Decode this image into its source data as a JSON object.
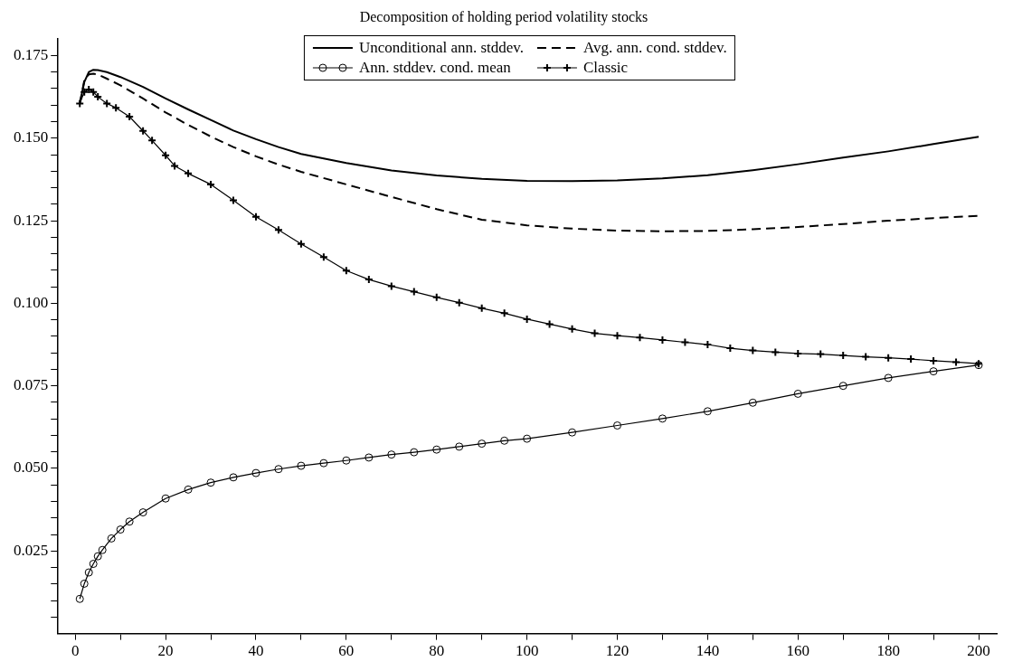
{
  "chart_data": {
    "type": "line",
    "title": "Decomposition of holding period volatility stocks",
    "legend": "top",
    "xlim": [
      -4,
      204
    ],
    "ylim": [
      0,
      0.18
    ],
    "xticks": [
      0,
      {
        "value": 10,
        "label": null
      },
      20,
      {
        "value": 30,
        "label": null
      },
      40,
      {
        "value": 50,
        "label": null
      },
      60,
      {
        "value": 70,
        "label": null
      },
      80,
      {
        "value": 90,
        "label": null
      },
      100,
      {
        "value": 110,
        "label": null
      },
      120,
      {
        "value": 130,
        "label": null
      },
      140,
      {
        "value": 150,
        "label": null
      },
      160,
      {
        "value": 170,
        "label": null
      },
      180,
      {
        "value": 190,
        "label": null
      },
      200
    ],
    "yticks": [
      {
        "value": 0.005,
        "label": null
      },
      {
        "value": 0.01,
        "label": null
      },
      {
        "value": 0.015,
        "label": null
      },
      {
        "value": 0.02,
        "label": null
      },
      {
        "value": 0.025,
        "label": "0.025"
      },
      {
        "value": 0.03,
        "label": null
      },
      {
        "value": 0.035,
        "label": null
      },
      {
        "value": 0.04,
        "label": null
      },
      {
        "value": 0.045,
        "label": null
      },
      {
        "value": 0.05,
        "label": "0.050"
      },
      {
        "value": 0.055,
        "label": null
      },
      {
        "value": 0.06,
        "label": null
      },
      {
        "value": 0.065,
        "label": null
      },
      {
        "value": 0.07,
        "label": null
      },
      {
        "value": 0.075,
        "label": "0.075"
      },
      {
        "value": 0.08,
        "label": null
      },
      {
        "value": 0.085,
        "label": null
      },
      {
        "value": 0.09,
        "label": null
      },
      {
        "value": 0.095,
        "label": null
      },
      {
        "value": 0.1,
        "label": "0.100"
      },
      {
        "value": 0.105,
        "label": null
      },
      {
        "value": 0.11,
        "label": null
      },
      {
        "value": 0.115,
        "label": null
      },
      {
        "value": 0.12,
        "label": null
      },
      {
        "value": 0.125,
        "label": "0.125"
      },
      {
        "value": 0.13,
        "label": null
      },
      {
        "value": 0.135,
        "label": null
      },
      {
        "value": 0.14,
        "label": null
      },
      {
        "value": 0.145,
        "label": null
      },
      {
        "value": 0.15,
        "label": "0.150"
      },
      {
        "value": 0.155,
        "label": null
      },
      {
        "value": 0.16,
        "label": null
      },
      {
        "value": 0.165,
        "label": null
      },
      {
        "value": 0.17,
        "label": null
      },
      {
        "value": 0.175,
        "label": "0.175"
      }
    ],
    "series": [
      {
        "name": "Unconditional ann. stddev.",
        "color": "#000000",
        "marker": "none",
        "line_style": "solid",
        "x": [
          1,
          2,
          3,
          4,
          5,
          7,
          10,
          15,
          20,
          25,
          30,
          35,
          40,
          45,
          50,
          60,
          70,
          80,
          90,
          100,
          110,
          120,
          130,
          140,
          150,
          160,
          170,
          180,
          190,
          200
        ],
        "values": [
          0.1605,
          0.167,
          0.17,
          0.1707,
          0.1706,
          0.17,
          0.1685,
          0.1655,
          0.162,
          0.1587,
          0.1555,
          0.1523,
          0.1497,
          0.1473,
          0.1452,
          0.1425,
          0.1402,
          0.1387,
          0.1377,
          0.1371,
          0.137,
          0.1372,
          0.1378,
          0.1388,
          0.1403,
          0.1421,
          0.1441,
          0.146,
          0.1482,
          0.1504
        ]
      },
      {
        "name": "Avg. ann. cond. stddev.",
        "color": "#000000",
        "marker": "none",
        "line_style": "dashed",
        "x": [
          1,
          2,
          3,
          4,
          5,
          7,
          10,
          15,
          20,
          25,
          30,
          35,
          40,
          45,
          50,
          60,
          70,
          80,
          90,
          100,
          110,
          120,
          130,
          140,
          150,
          160,
          170,
          180,
          190,
          200
        ],
        "values": [
          0.1605,
          0.1675,
          0.1693,
          0.1695,
          0.1693,
          0.168,
          0.166,
          0.162,
          0.1578,
          0.154,
          0.1505,
          0.1473,
          0.1445,
          0.142,
          0.1398,
          0.136,
          0.1322,
          0.1285,
          0.1253,
          0.1236,
          0.1226,
          0.122,
          0.1218,
          0.1219,
          0.1224,
          0.1231,
          0.124,
          0.125,
          0.1258,
          0.1265
        ]
      },
      {
        "name": "Ann. stddev. cond. mean",
        "color": "#000000",
        "marker": "circle",
        "line_style": "solid",
        "x": [
          1,
          2,
          3,
          4,
          5,
          6,
          8,
          10,
          12,
          15,
          20,
          25,
          30,
          35,
          40,
          45,
          50,
          55,
          60,
          65,
          70,
          75,
          80,
          85,
          90,
          95,
          100,
          110,
          120,
          130,
          140,
          150,
          160,
          170,
          180,
          190,
          200
        ],
        "values": [
          0.0105,
          0.0151,
          0.0185,
          0.0211,
          0.0234,
          0.0253,
          0.0288,
          0.0315,
          0.0339,
          0.0367,
          0.0409,
          0.0436,
          0.0457,
          0.0473,
          0.0486,
          0.0498,
          0.0508,
          0.0516,
          0.0524,
          0.0533,
          0.0542,
          0.0549,
          0.0557,
          0.0566,
          0.0575,
          0.0584,
          0.059,
          0.0609,
          0.063,
          0.0651,
          0.0673,
          0.0699,
          0.0726,
          0.075,
          0.0774,
          0.0794,
          0.0813
        ]
      },
      {
        "name": "Classic",
        "color": "#000000",
        "marker": "cross",
        "line_style": "solid",
        "x": [
          1,
          2,
          3,
          4,
          5,
          7,
          9,
          12,
          15,
          17,
          20,
          22,
          25,
          30,
          35,
          40,
          45,
          50,
          55,
          60,
          65,
          70,
          75,
          80,
          85,
          90,
          95,
          100,
          105,
          110,
          115,
          120,
          125,
          130,
          135,
          140,
          145,
          150,
          155,
          160,
          165,
          170,
          175,
          180,
          185,
          190,
          195,
          200
        ],
        "values": [
          0.1605,
          0.164,
          0.1647,
          0.164,
          0.1625,
          0.1605,
          0.1592,
          0.1565,
          0.1522,
          0.1493,
          0.1448,
          0.1416,
          0.1393,
          0.136,
          0.1312,
          0.1262,
          0.1222,
          0.118,
          0.114,
          0.1099,
          0.1072,
          0.1052,
          0.1035,
          0.1018,
          0.1002,
          0.0985,
          0.097,
          0.0952,
          0.0937,
          0.0922,
          0.0909,
          0.0902,
          0.0896,
          0.0889,
          0.0882,
          0.0875,
          0.0864,
          0.0857,
          0.0852,
          0.0848,
          0.0846,
          0.0842,
          0.0838,
          0.0835,
          0.0831,
          0.0826,
          0.0822,
          0.0817
        ]
      }
    ]
  }
}
